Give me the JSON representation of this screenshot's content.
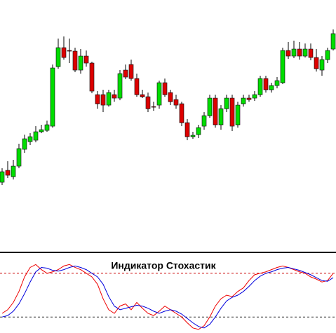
{
  "chart_data": [
    {
      "type": "candlestick",
      "up_color": "#00dd00",
      "down_color": "#dd0000",
      "wick_color": "#000000",
      "ylim": [
        45,
        400
      ],
      "open": [
        140,
        157,
        148,
        163,
        187,
        198,
        200,
        212,
        214,
        220,
        305,
        332,
        328,
        327,
        300,
        320,
        310,
        265,
        265,
        250,
        265,
        260,
        300,
        308,
        288,
        265,
        262,
        248,
        250,
        282,
        268,
        258,
        252,
        225,
        205,
        208,
        220,
        235,
        260,
        222,
        245,
        260,
        222,
        252,
        260,
        260,
        265,
        288,
        272,
        278,
        282,
        328,
        320,
        330,
        320,
        330,
        318,
        300,
        315,
        330
      ],
      "close": [
        155,
        150,
        163,
        188,
        202,
        205,
        212,
        215,
        222,
        303,
        332,
        318,
        327,
        300,
        320,
        310,
        270,
        252,
        250,
        268,
        260,
        295,
        290,
        288,
        265,
        262,
        245,
        247,
        282,
        265,
        255,
        250,
        225,
        205,
        207,
        218,
        235,
        260,
        222,
        245,
        260,
        220,
        250,
        260,
        258,
        265,
        288,
        272,
        278,
        285,
        328,
        320,
        330,
        320,
        330,
        318,
        302,
        315,
        328,
        352
      ],
      "high": [
        160,
        170,
        172,
        195,
        208,
        210,
        220,
        222,
        228,
        308,
        345,
        348,
        345,
        332,
        330,
        328,
        312,
        270,
        272,
        272,
        272,
        300,
        308,
        315,
        295,
        272,
        268,
        255,
        285,
        288,
        272,
        265,
        255,
        230,
        212,
        222,
        240,
        265,
        265,
        250,
        265,
        265,
        255,
        265,
        265,
        270,
        292,
        292,
        282,
        290,
        332,
        340,
        342,
        340,
        338,
        338,
        330,
        320,
        332,
        358
      ],
      "low": [
        136,
        146,
        144,
        160,
        182,
        193,
        197,
        210,
        212,
        218,
        302,
        315,
        310,
        297,
        295,
        305,
        267,
        245,
        240,
        248,
        255,
        257,
        287,
        285,
        262,
        260,
        240,
        242,
        245,
        262,
        250,
        245,
        220,
        200,
        202,
        203,
        215,
        232,
        218,
        215,
        240,
        213,
        218,
        248,
        255,
        256,
        262,
        268,
        268,
        274,
        280,
        316,
        317,
        315,
        318,
        314,
        298,
        292,
        310,
        328
      ]
    },
    {
      "type": "line",
      "title": "Индикатор Стохастик",
      "ylim": [
        0,
        100
      ],
      "yticks": [
        20,
        80
      ],
      "grid": true,
      "grid_style": "dashed",
      "tick_colors": [
        "#333333",
        "#cc0000"
      ],
      "series": [
        {
          "color": "#ee0000",
          "values": [
            25,
            30,
            40,
            55,
            75,
            88,
            92,
            85,
            80,
            82,
            85,
            90,
            92,
            88,
            85,
            80,
            75,
            65,
            45,
            30,
            25,
            35,
            38,
            30,
            40,
            32,
            25,
            22,
            28,
            35,
            30,
            25,
            20,
            12,
            5,
            3,
            8,
            20,
            35,
            45,
            50,
            48,
            55,
            60,
            70,
            78,
            80,
            82,
            85,
            88,
            90,
            88,
            85,
            82,
            80,
            75,
            72,
            68,
            70,
            80
          ]
        },
        {
          "color": "#0000dd",
          "values": [
            20,
            22,
            28,
            38,
            52,
            68,
            82,
            88,
            87,
            84,
            83,
            85,
            88,
            90,
            88,
            85,
            80,
            75,
            65,
            48,
            35,
            30,
            32,
            34,
            36,
            35,
            32,
            28,
            25,
            28,
            30,
            28,
            24,
            18,
            12,
            7,
            5,
            10,
            20,
            32,
            42,
            47,
            50,
            55,
            62,
            70,
            76,
            80,
            82,
            85,
            87,
            88,
            86,
            84,
            81,
            78,
            74,
            70,
            69,
            74
          ]
        }
      ]
    }
  ]
}
